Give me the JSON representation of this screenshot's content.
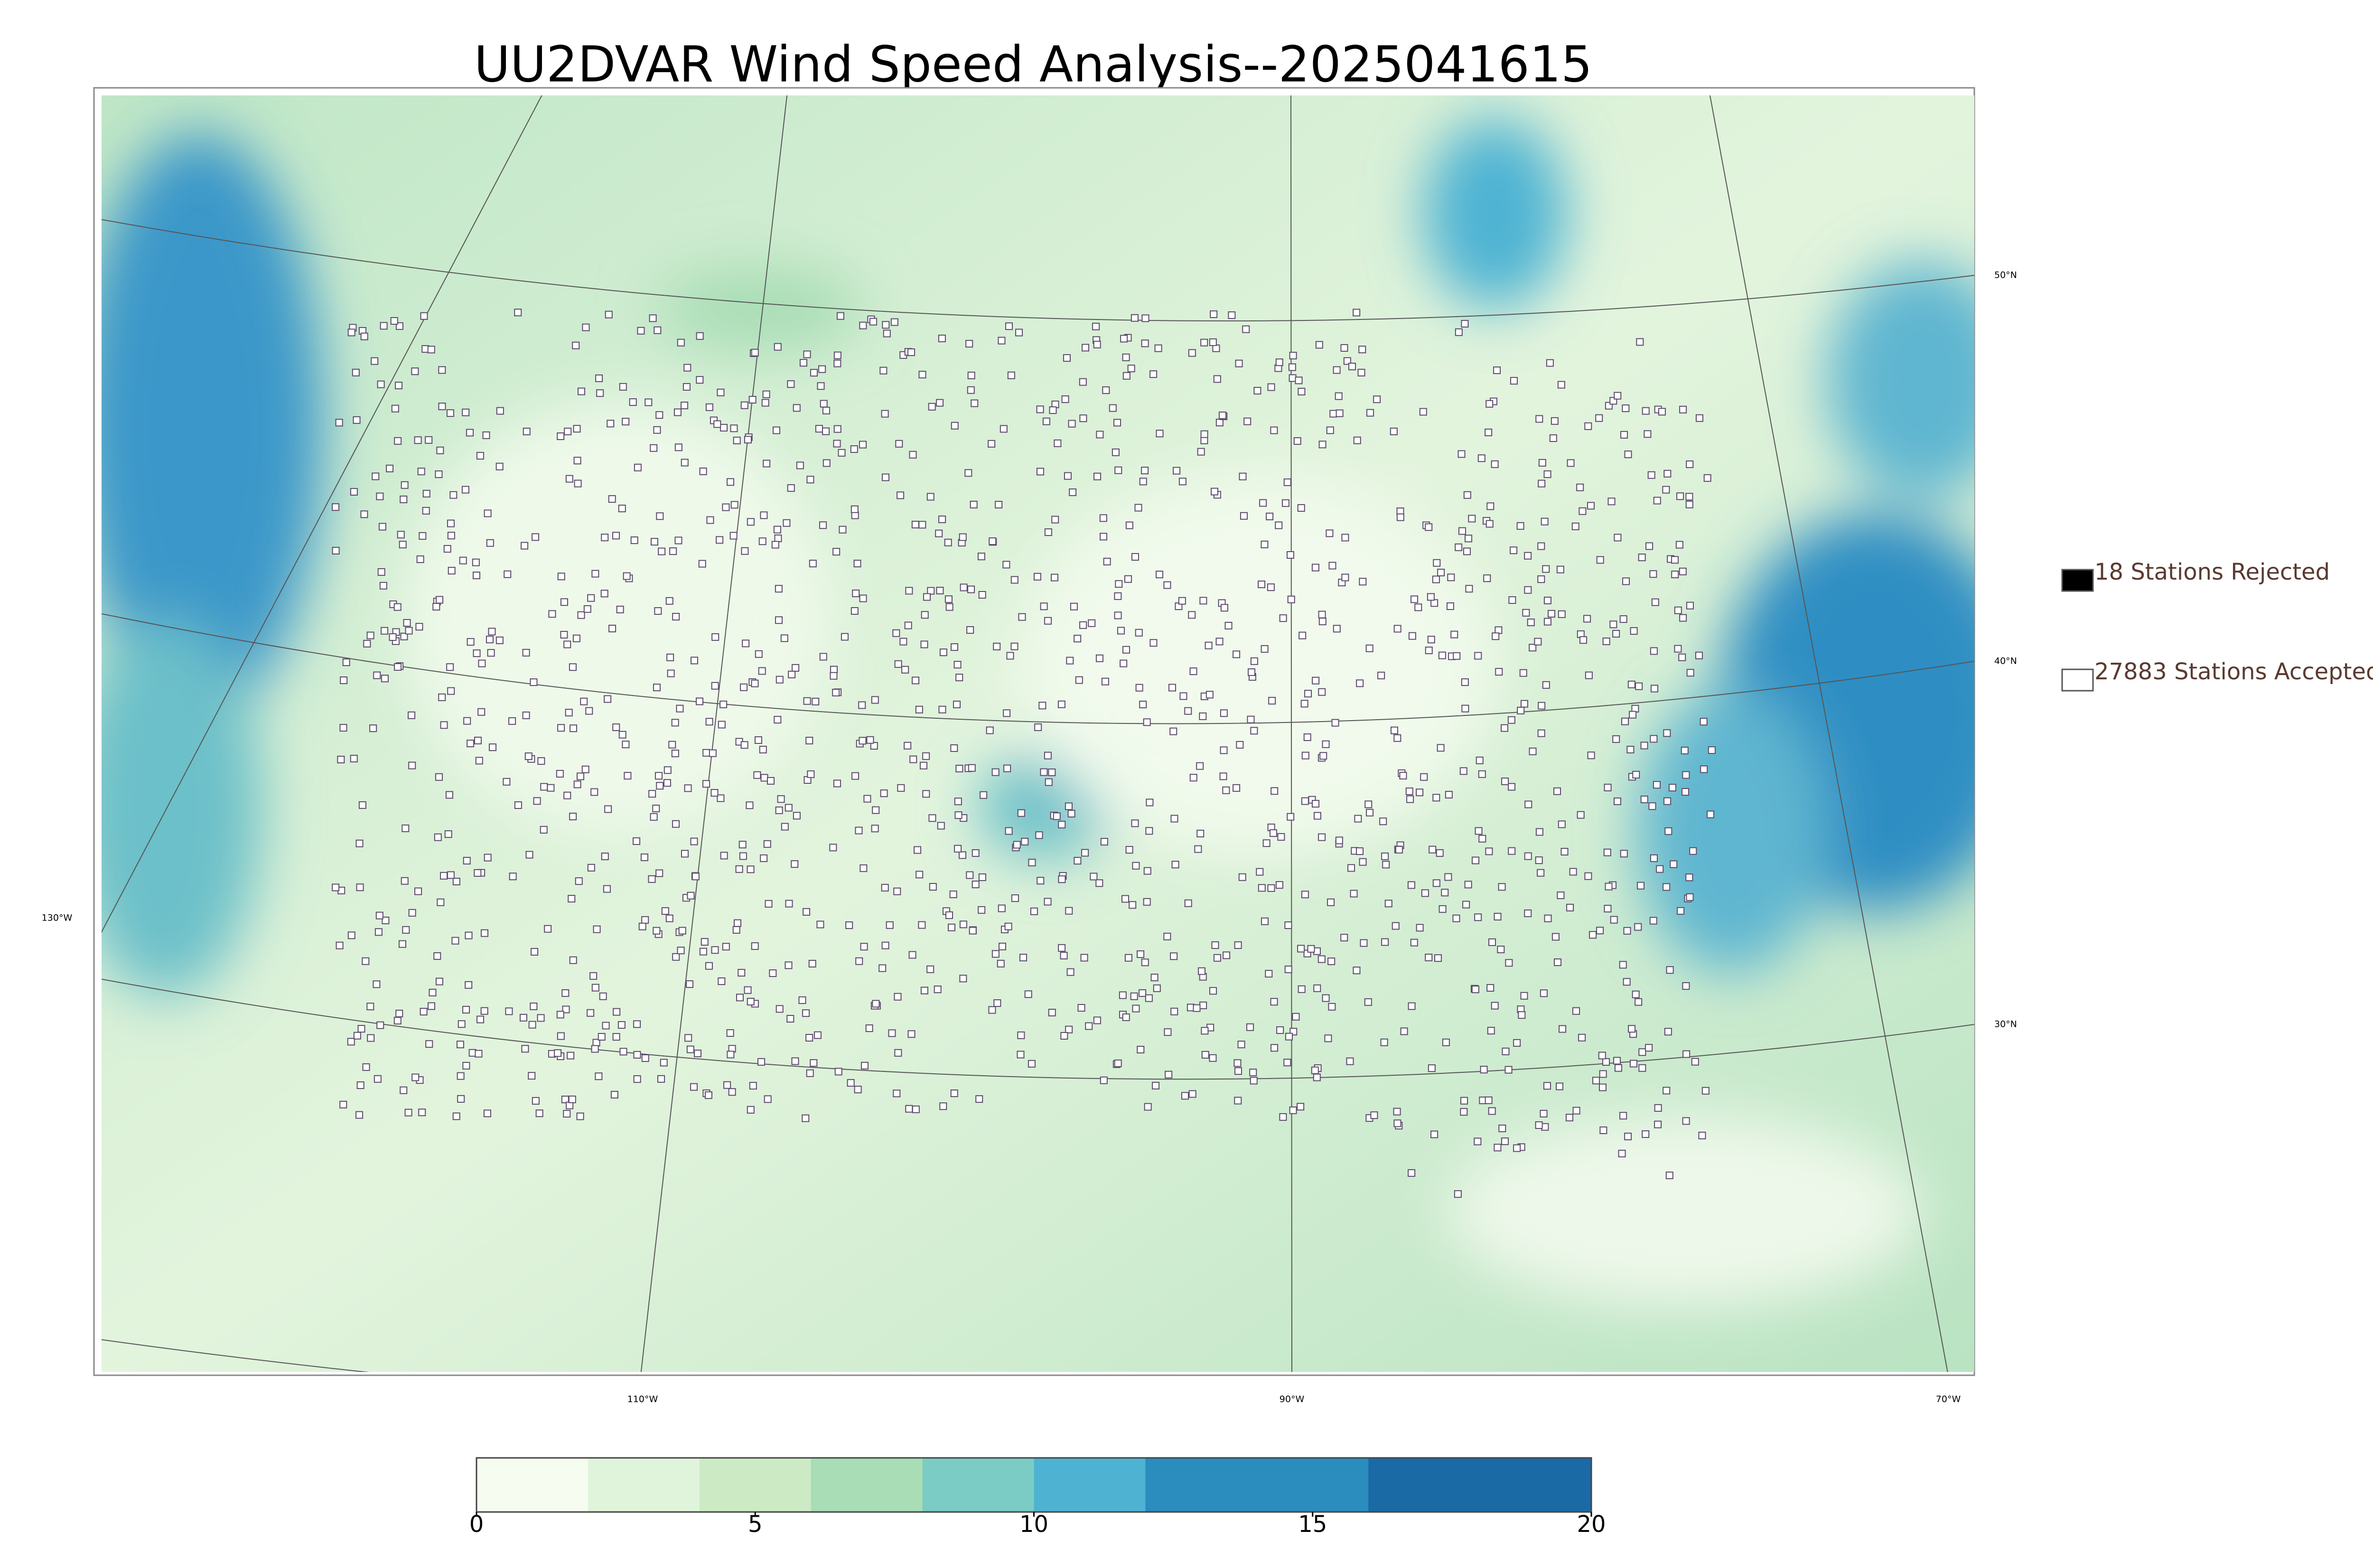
{
  "title": "UU2DVAR Wind Speed Analysis--2025041615",
  "legend": [
    {
      "label": "18 Stations Rejected",
      "color": "#000000"
    },
    {
      "label": "27883 Stations Accepted",
      "color": "#ffffff"
    }
  ],
  "graticule": {
    "latitudes": [
      "50°N",
      "40°N",
      "30°N"
    ],
    "longitudes": [
      "130°W",
      "110°W",
      "90°W",
      "70°W"
    ]
  },
  "colorbar": {
    "lim": [
      0,
      20
    ],
    "ticks": [
      0,
      5,
      10,
      15,
      20
    ],
    "colors": [
      "#f7fcf0",
      "#e0f3db",
      "#ccebc5",
      "#a8ddb5",
      "#7bccc4",
      "#4eb3d3",
      "#2b8cbe",
      "#2b8cbe",
      "#1a6aa6",
      "#1a6aa6"
    ]
  }
}
